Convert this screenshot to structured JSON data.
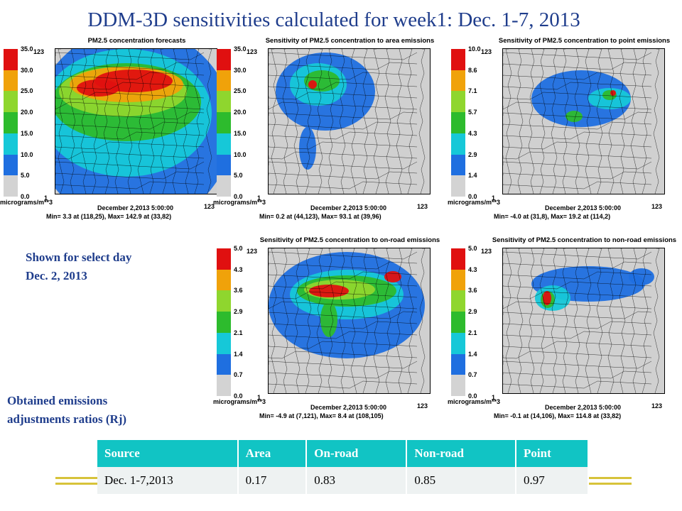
{
  "slide": {
    "title": "DDM-3D sensitivities calculated for week1: Dec. 1-7, 2013"
  },
  "notes": {
    "select_day_line1": "Shown for select day",
    "select_day_line2": "Dec. 2, 2013",
    "ratios_line1": "Obtained emissions",
    "ratios_line2": "adjustments ratios (Rj)"
  },
  "chart_data": [
    {
      "type": "heatmap",
      "title": "PM2.5 concentration forecasts",
      "colorbar_ticks": [
        "35.0",
        "30.0",
        "25.0",
        "20.0",
        "15.0",
        "10.0",
        "5.0",
        "0.0"
      ],
      "units": "micrograms/m**3",
      "grid_label_top": "123",
      "grid_label_x1": "1",
      "grid_label_xend": "123",
      "date": "December 2,2013 5:00:00",
      "minmax": "Min=    3.3 at (118,25), Max=    142.9 at (33,82)",
      "min": 3.3,
      "max": 142.9,
      "colors": [
        "#d3d3d3",
        "#1f6fe0",
        "#16c8d8",
        "#2dbb2d",
        "#8fd62e",
        "#f0a20a",
        "#e01010"
      ]
    },
    {
      "type": "heatmap",
      "title": "Sensitivity of PM2.5 concentration to area emissions",
      "colorbar_ticks": [
        "35.0",
        "30.0",
        "25.0",
        "20.0",
        "15.0",
        "10.0",
        "5.0",
        "0.0"
      ],
      "units": "micrograms/m**3",
      "grid_label_top": "123",
      "grid_label_x1": "1",
      "grid_label_xend": "123",
      "date": "December 2,2013 5:00:00",
      "minmax": "Min=    0.2 at (44,123), Max=    93.1 at (39,96)",
      "min": 0.2,
      "max": 93.1,
      "colors": [
        "#d3d3d3",
        "#1f6fe0",
        "#16c8d8",
        "#2dbb2d",
        "#8fd62e",
        "#f0a20a",
        "#e01010"
      ]
    },
    {
      "type": "heatmap",
      "title": "Sensitivity of PM2.5 concentration to point emissions",
      "colorbar_ticks": [
        "10.0",
        "8.6",
        "7.1",
        "5.7",
        "4.3",
        "2.9",
        "1.4",
        "0.0"
      ],
      "units": "micrograms/m**3",
      "grid_label_top": "123",
      "grid_label_x1": "1",
      "grid_label_xend": "123",
      "date": "December 2,2013 5:00:00",
      "minmax": "Min=    -4.0 at (31,8), Max=    19.2 at (114,2)",
      "min": -4.0,
      "max": 19.2,
      "colors": [
        "#d3d3d3",
        "#1f6fe0",
        "#16c8d8",
        "#2dbb2d",
        "#8fd62e",
        "#f0a20a",
        "#e01010"
      ]
    },
    {
      "type": "heatmap",
      "title": "Sensitivity of PM2.5 concentration to on-road emissions",
      "colorbar_ticks": [
        "5.0",
        "4.3",
        "3.6",
        "2.9",
        "2.1",
        "1.4",
        "0.7",
        "0.0"
      ],
      "units": "micrograms/m**3",
      "grid_label_top": "123",
      "grid_label_x1": "1",
      "grid_label_xend": "123",
      "date": "December 2,2013 5:00:00",
      "minmax": "Min=    -4.9 at (7,121), Max=    8.4 at (108,105)",
      "min": -4.9,
      "max": 8.4,
      "colors": [
        "#d3d3d3",
        "#1f6fe0",
        "#16c8d8",
        "#2dbb2d",
        "#8fd62e",
        "#f0a20a",
        "#e01010"
      ]
    },
    {
      "type": "heatmap",
      "title": "Sensitivity of PM2.5 concentration to non-road emissions",
      "colorbar_ticks": [
        "5.0",
        "4.3",
        "3.6",
        "2.9",
        "2.1",
        "1.4",
        "0.7",
        "0.0"
      ],
      "units": "micrograms/m**3",
      "grid_label_top": "123",
      "grid_label_x1": "1",
      "grid_label_xend": "123",
      "date": "December 2,2013 5:00:00",
      "minmax": "Min=    -0.1 at (14,106), Max=    114.8 at (33,82)",
      "min": -0.1,
      "max": 114.8,
      "colors": [
        "#d3d3d3",
        "#1f6fe0",
        "#16c8d8",
        "#2dbb2d",
        "#8fd62e",
        "#f0a20a",
        "#e01010"
      ]
    },
    {
      "type": "table",
      "columns": [
        "Source",
        "Area",
        "On-road",
        "Non-road",
        "Point"
      ],
      "rows": [
        [
          "Dec. 1-7,2013",
          "0.17",
          "0.83",
          "0.85",
          "0.97"
        ]
      ]
    }
  ]
}
